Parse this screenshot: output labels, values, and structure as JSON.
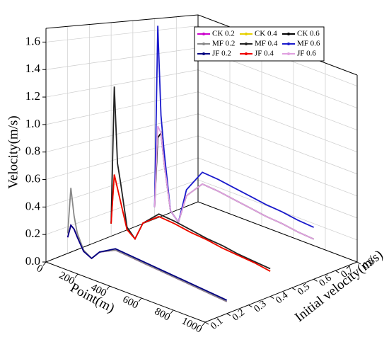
{
  "chart_data": {
    "type": "line3d",
    "x_label": "Point(m)",
    "y_label": "Velocity(m/s)",
    "z_label": "Initial velocity(m/s)",
    "xlim": [
      0,
      1000
    ],
    "xticks": [
      0,
      200,
      400,
      600,
      800,
      1000
    ],
    "ylim": [
      0,
      1.7
    ],
    "yticks": [
      {
        "value": 0,
        "label": "0.0"
      },
      0.2,
      0.4,
      0.6,
      0.8,
      {
        "value": 1,
        "label": "1.0"
      },
      1.2,
      1.4,
      1.6
    ],
    "zlim": [
      0.1,
      0.8
    ],
    "zticks": [
      0.1,
      0.2,
      0.3,
      0.4,
      0.5,
      0.6,
      0.7,
      0.8
    ],
    "grid": true,
    "x": [
      0,
      20,
      40,
      60,
      100,
      150,
      200,
      300,
      400,
      500,
      600,
      700,
      800,
      900,
      1000
    ],
    "series": [
      {
        "name": "CK 0.2",
        "color": "#cc00cc",
        "z": 0.2,
        "values": [
          0.12,
          0.22,
          0.2,
          0.15,
          0.06,
          0.03,
          0.1,
          0.16,
          0.15,
          0.14,
          0.13,
          0.12,
          0.11,
          0.1,
          0.09
        ]
      },
      {
        "name": "CK 0.4",
        "color": "#e6d000",
        "z": 0.4,
        "values": [
          0.1,
          0.5,
          0.4,
          0.3,
          0.1,
          0.05,
          0.2,
          0.3,
          0.29,
          0.27,
          0.26,
          0.24,
          0.23,
          0.22,
          0.2
        ]
      },
      {
        "name": "CK 0.6",
        "color": "#000000",
        "z": 0.6,
        "values": [
          0.1,
          0.7,
          0.75,
          0.5,
          0.12,
          0.05,
          0.3,
          0.45,
          0.44,
          0.42,
          0.4,
          0.38,
          0.37,
          0.35,
          0.34
        ]
      },
      {
        "name": "MF 0.2",
        "color": "#888888",
        "z": 0.2,
        "values": [
          0.15,
          0.5,
          0.3,
          0.18,
          0.07,
          0.03,
          0.1,
          0.16,
          0.15,
          0.14,
          0.13,
          0.12,
          0.11,
          0.1,
          0.09
        ]
      },
      {
        "name": "MF 0.4",
        "color": "#222222",
        "z": 0.4,
        "values": [
          0.1,
          1.2,
          0.6,
          0.45,
          0.12,
          0.05,
          0.2,
          0.32,
          0.31,
          0.29,
          0.27,
          0.26,
          0.24,
          0.23,
          0.22
        ]
      },
      {
        "name": "MF 0.6",
        "color": "#1a1acc",
        "z": 0.6,
        "values": [
          0.1,
          1.65,
          0.9,
          0.6,
          0.12,
          0.05,
          0.35,
          0.55,
          0.54,
          0.52,
          0.5,
          0.48,
          0.47,
          0.45,
          0.44
        ]
      },
      {
        "name": "JF 0.2",
        "color": "#000080",
        "z": 0.2,
        "values": [
          0.12,
          0.22,
          0.2,
          0.15,
          0.06,
          0.03,
          0.1,
          0.17,
          0.16,
          0.15,
          0.14,
          0.13,
          0.12,
          0.11,
          0.1
        ]
      },
      {
        "name": "JF 0.4",
        "color": "#ee0000",
        "z": 0.4,
        "values": [
          0.1,
          0.5,
          0.4,
          0.3,
          0.1,
          0.05,
          0.2,
          0.3,
          0.29,
          0.27,
          0.26,
          0.24,
          0.23,
          0.22,
          0.2
        ]
      },
      {
        "name": "JF 0.6",
        "color": "#e0a0e0",
        "z": 0.6,
        "values": [
          0.1,
          0.8,
          0.75,
          0.5,
          0.12,
          0.05,
          0.3,
          0.45,
          0.44,
          0.42,
          0.4,
          0.38,
          0.37,
          0.35,
          0.34
        ]
      }
    ]
  }
}
